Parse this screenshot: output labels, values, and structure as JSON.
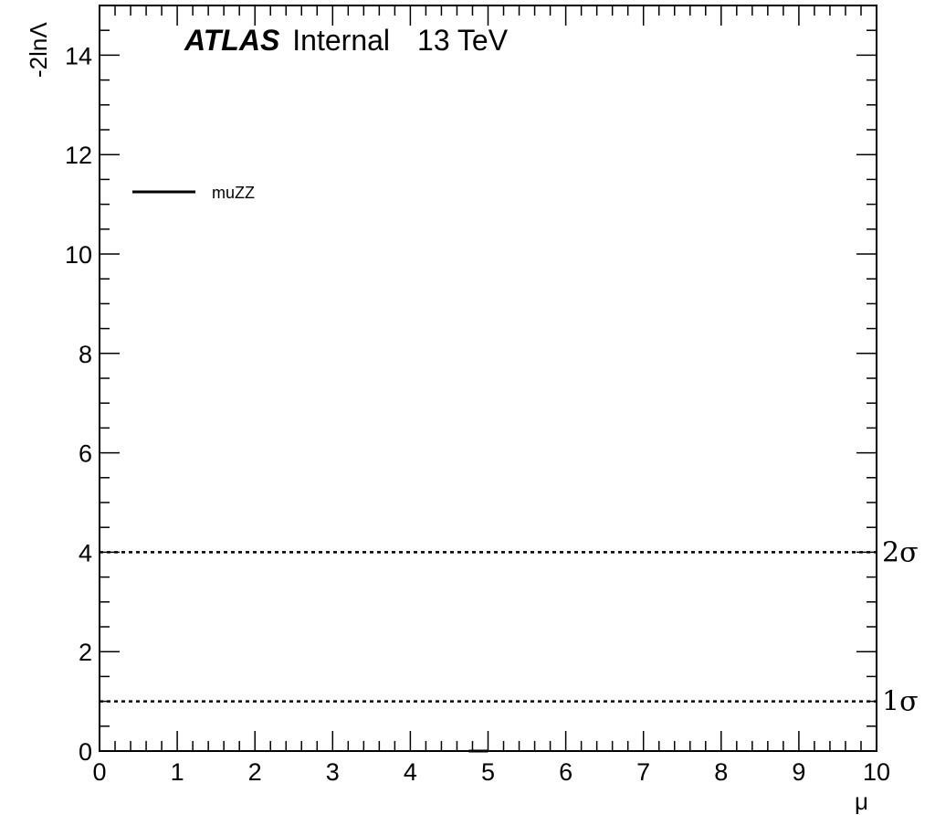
{
  "chart_data": {
    "type": "line",
    "xlabel": "μ",
    "ylabel": "-2lnΛ",
    "xlim": [
      0,
      10
    ],
    "ylim": [
      0,
      15
    ],
    "x_ticks": [
      "0",
      "1",
      "2",
      "3",
      "4",
      "5",
      "6",
      "7",
      "8",
      "9",
      "10"
    ],
    "y_ticks": [
      "0",
      "2",
      "4",
      "6",
      "8",
      "10",
      "12",
      "14"
    ],
    "grid": false,
    "label_atlas": "ATLAS",
    "label_status": "Internal",
    "label_energy": "13 TeV",
    "legend_placement": "top-left",
    "series": [
      {
        "name": "muZZ",
        "color": "#000000",
        "points": [
          [
            4.75,
            0.0
          ],
          [
            5.0,
            0.0
          ]
        ]
      }
    ],
    "reference_lines": [
      {
        "label": "1σ",
        "y": 1,
        "style": "dotted"
      },
      {
        "label": "2σ",
        "y": 4,
        "style": "dotted"
      }
    ]
  }
}
